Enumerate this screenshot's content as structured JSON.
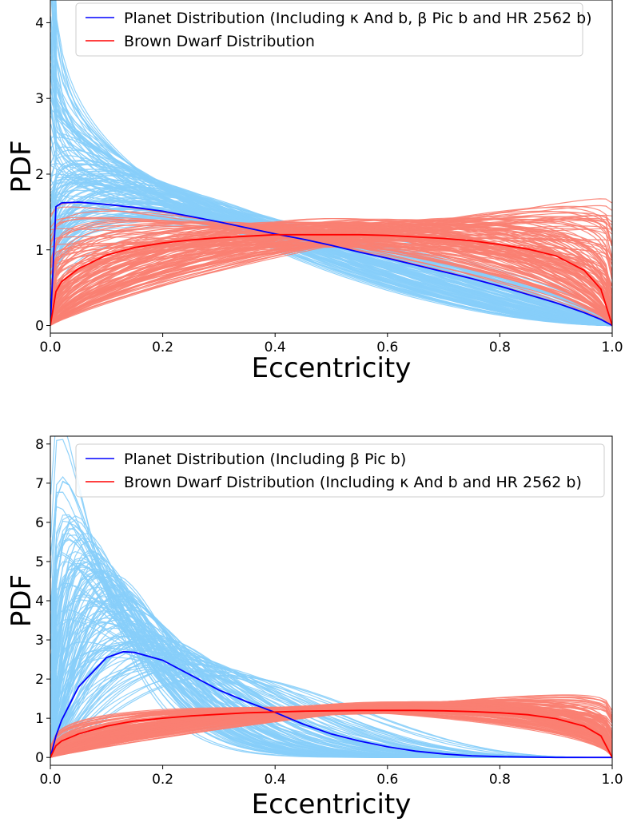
{
  "chart_data": [
    {
      "type": "line",
      "xlabel": "Eccentricity",
      "ylabel": "PDF",
      "xlim": [
        0,
        1
      ],
      "ylim": [
        -0.1,
        4.3
      ],
      "x_ticks": [
        "0.0",
        "0.2",
        "0.4",
        "0.6",
        "0.8",
        "1.0"
      ],
      "y_ticks": [
        "0",
        "1",
        "2",
        "3",
        "4"
      ],
      "grid": false,
      "legend_position": "top-right",
      "x": [
        0.0,
        0.01,
        0.02,
        0.05,
        0.1,
        0.15,
        0.2,
        0.25,
        0.3,
        0.35,
        0.4,
        0.45,
        0.5,
        0.55,
        0.6,
        0.65,
        0.7,
        0.75,
        0.8,
        0.85,
        0.9,
        0.95,
        0.98,
        1.0
      ],
      "series": [
        {
          "name": "Planet Distribution (Including κ And b, β Pic b and HR 2562 b)",
          "color": "#0000ff",
          "values": [
            0.0,
            1.57,
            1.62,
            1.63,
            1.6,
            1.56,
            1.51,
            1.44,
            1.37,
            1.29,
            1.21,
            1.14,
            1.06,
            0.97,
            0.89,
            0.8,
            0.71,
            0.62,
            0.52,
            0.41,
            0.3,
            0.17,
            0.08,
            0.0
          ]
        },
        {
          "name": "Brown Dwarf Distribution",
          "color": "#ff0000",
          "values": [
            0.0,
            0.45,
            0.58,
            0.75,
            0.93,
            1.03,
            1.09,
            1.13,
            1.16,
            1.18,
            1.2,
            1.2,
            1.2,
            1.2,
            1.19,
            1.17,
            1.15,
            1.12,
            1.07,
            1.01,
            0.92,
            0.73,
            0.48,
            0.0
          ]
        }
      ],
      "band_colors": {
        "planet_samples": "#87cefa",
        "brown_dwarf_samples": "#fa8072"
      }
    },
    {
      "type": "line",
      "xlabel": "Eccentricity",
      "ylabel": "PDF",
      "xlim": [
        0,
        1
      ],
      "ylim": [
        -0.2,
        8.2
      ],
      "x_ticks": [
        "0.0",
        "0.2",
        "0.4",
        "0.6",
        "0.8",
        "1.0"
      ],
      "y_ticks": [
        "0",
        "1",
        "2",
        "3",
        "4",
        "5",
        "6",
        "7",
        "8"
      ],
      "grid": false,
      "legend_position": "top-right",
      "x": [
        0.0,
        0.01,
        0.02,
        0.05,
        0.1,
        0.13,
        0.15,
        0.2,
        0.25,
        0.3,
        0.35,
        0.4,
        0.45,
        0.5,
        0.55,
        0.6,
        0.65,
        0.7,
        0.75,
        0.8,
        0.85,
        0.9,
        0.95,
        0.98,
        1.0
      ],
      "series": [
        {
          "name": "Planet Distribution (Including β Pic b)",
          "color": "#0000ff",
          "values": [
            0.0,
            0.55,
            0.95,
            1.8,
            2.55,
            2.7,
            2.68,
            2.48,
            2.1,
            1.72,
            1.42,
            1.15,
            0.85,
            0.6,
            0.42,
            0.27,
            0.16,
            0.09,
            0.04,
            0.02,
            0.01,
            0.0,
            0.0,
            0.0,
            0.0
          ]
        },
        {
          "name": "Brown Dwarf Distribution (Including κ And b and HR 2562 b)",
          "color": "#ff0000",
          "values": [
            0.0,
            0.3,
            0.42,
            0.6,
            0.8,
            0.88,
            0.93,
            1.0,
            1.06,
            1.1,
            1.14,
            1.16,
            1.18,
            1.19,
            1.2,
            1.2,
            1.2,
            1.19,
            1.17,
            1.14,
            1.09,
            0.99,
            0.8,
            0.55,
            0.0
          ]
        }
      ],
      "band_colors": {
        "planet_samples": "#87cefa",
        "brown_dwarf_samples": "#fa8072"
      }
    }
  ]
}
